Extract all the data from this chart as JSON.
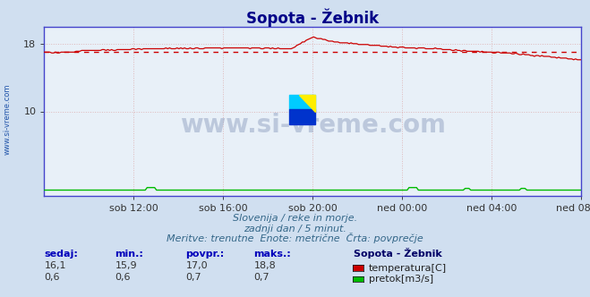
{
  "title": "Sopota - Žebnik",
  "bg_color": "#d0dff0",
  "plot_bg_color": "#e8f0f8",
  "grid_color": "#ddaaaa",
  "border_color": "#4444cc",
  "ylim": [
    0,
    20
  ],
  "yticks": [
    10,
    18
  ],
  "xlabel_ticks": [
    "sob 12:00",
    "sob 16:00",
    "sob 20:00",
    "ned 00:00",
    "ned 04:00",
    "ned 08:00"
  ],
  "n_points": 288,
  "temp_avg": 17.0,
  "temp_color": "#cc0000",
  "flow_color": "#00bb00",
  "avg_line_color": "#cc0000",
  "watermark": "www.si-vreme.com",
  "footer_line1": "Slovenija / reke in morje.",
  "footer_line2": "zadnji dan / 5 minut.",
  "footer_line3": "Meritve: trenutne  Enote: metrične  Črta: povprečje",
  "sidebar_text": "www.si-vreme.com",
  "legend_title": "Sopota - Žebnik",
  "legend_items": [
    "temperatura[C]",
    "pretok[m3/s]"
  ],
  "legend_colors": [
    "#cc0000",
    "#00bb00"
  ],
  "stat_labels": [
    "sedaj:",
    "min.:",
    "povpr.:",
    "maks.:"
  ],
  "temp_stats": [
    16.1,
    15.9,
    17.0,
    18.8
  ],
  "flow_stats": [
    0.6,
    0.6,
    0.7,
    0.7
  ],
  "title_fontsize": 12,
  "axis_fontsize": 8,
  "footer_fontsize": 8
}
